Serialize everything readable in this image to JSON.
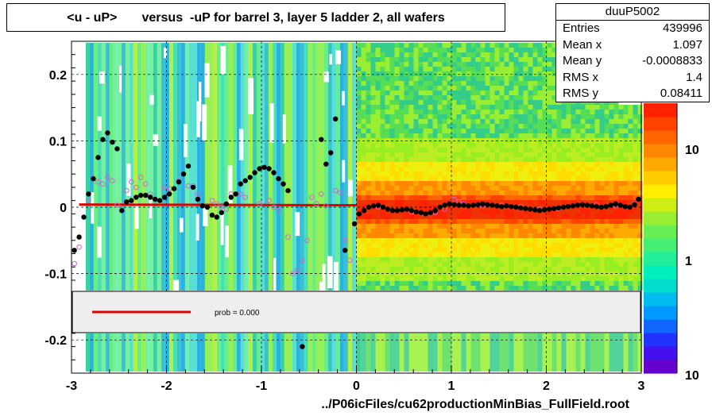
{
  "page": {
    "title": "<u - uP>       versus  -uP for barrel 3, layer 5 ladder 2, all wafers"
  },
  "stats": {
    "name": "duuP5002",
    "rows": [
      {
        "label": "Entries",
        "value": "439996"
      },
      {
        "label": "Mean x",
        "value": "1.097"
      },
      {
        "label": "Mean y",
        "value": "-0.0008833"
      },
      {
        "label": "RMS x",
        "value": "1.4"
      },
      {
        "label": "RMS y",
        "value": "0.08411"
      }
    ]
  },
  "legend": {
    "prob_text": "prob = 0.000"
  },
  "footer": {
    "x_title": "../P06icFiles/cu62productionMinBias_FullField.root"
  },
  "colors": {
    "fit_line": "#e00000",
    "profile_black": "#000000",
    "profile_open": "#cc66cc"
  },
  "chart_data": {
    "type": "scatter",
    "title": "<u - uP>       versus  -uP for barrel 3, layer 5 ladder 2, all wafers",
    "xlim": [
      -3,
      3
    ],
    "ylim": [
      -0.25,
      0.25
    ],
    "x_ticks": [
      "-3",
      "-2",
      "-1",
      "0",
      "1",
      "2",
      "3"
    ],
    "y_ticks": [
      "0.2",
      "0.1",
      "0",
      "-0.1",
      "-0.2"
    ],
    "z_ticks": [
      "10",
      "1",
      "10"
    ],
    "z_scale": "log",
    "grid": true,
    "heatmap_background": true,
    "series": [
      {
        "marker": "filled-circle",
        "x": [
          -2.97,
          -2.92,
          -2.87,
          -2.82,
          -2.77,
          -2.72,
          -2.67,
          -2.62,
          -2.57,
          -2.52,
          -2.47,
          -2.42,
          -2.37,
          -2.32,
          -2.27,
          -2.22,
          -2.17,
          -2.12,
          -2.07,
          -2.02,
          -1.97,
          -1.92,
          -1.87,
          -1.82,
          -1.77,
          -1.72,
          -1.67,
          -1.62,
          -1.57,
          -1.52,
          -1.47,
          -1.42,
          -1.37,
          -1.32,
          -1.27,
          -1.22,
          -1.17,
          -1.12,
          -1.07,
          -1.02,
          -0.97,
          -0.92,
          -0.87,
          -0.82,
          -0.77,
          -0.72,
          -0.57,
          -0.37,
          -0.32,
          -0.27,
          -0.22,
          -0.12,
          -0.02,
          0.03,
          0.08,
          0.13,
          0.18,
          0.23,
          0.28,
          0.33,
          0.38,
          0.43,
          0.48,
          0.53,
          0.58,
          0.63,
          0.68,
          0.73,
          0.78,
          0.83,
          0.88,
          0.93,
          0.98,
          1.03,
          1.08,
          1.13,
          1.18,
          1.23,
          1.28,
          1.33,
          1.38,
          1.43,
          1.48,
          1.53,
          1.58,
          1.63,
          1.68,
          1.73,
          1.78,
          1.83,
          1.88,
          1.93,
          1.98,
          2.03,
          2.08,
          2.13,
          2.18,
          2.23,
          2.28,
          2.33,
          2.38,
          2.43,
          2.48,
          2.53,
          2.58,
          2.63,
          2.68,
          2.73,
          2.78,
          2.83,
          2.88,
          2.93,
          2.97
        ],
        "y": [
          -0.065,
          -0.045,
          -0.015,
          0.02,
          0.043,
          0.075,
          0.102,
          0.112,
          0.098,
          0.088,
          -0.005,
          0.008,
          0.01,
          0.015,
          0.018,
          0.018,
          0.015,
          0.012,
          0.01,
          0.015,
          0.02,
          0.028,
          0.038,
          0.05,
          0.062,
          0.03,
          0.012,
          0.002,
          0.0,
          -0.012,
          -0.015,
          -0.008,
          0.005,
          0.015,
          0.02,
          0.035,
          0.04,
          0.045,
          0.052,
          0.058,
          0.06,
          0.058,
          0.052,
          0.043,
          0.035,
          0.025,
          -0.21,
          0.102,
          0.065,
          0.082,
          0.133,
          -0.065,
          -0.025,
          -0.01,
          -0.005,
          0.0,
          0.002,
          0.003,
          0.0,
          -0.003,
          -0.005,
          -0.005,
          -0.004,
          -0.003,
          -0.005,
          -0.007,
          -0.008,
          -0.01,
          -0.008,
          -0.005,
          0.0,
          0.003,
          0.005,
          0.004,
          0.003,
          0.003,
          0.002,
          0.003,
          0.004,
          0.005,
          0.004,
          0.003,
          0.002,
          0.001,
          0.002,
          0.001,
          0.0,
          -0.001,
          -0.002,
          -0.003,
          -0.004,
          -0.005,
          -0.004,
          -0.003,
          -0.002,
          -0.001,
          0.0,
          0.001,
          0.002,
          0.003,
          0.004,
          0.003,
          0.002,
          0.001,
          0.0,
          0.001,
          0.003,
          0.005,
          0.003,
          0.001,
          0.0,
          0.004,
          0.012
        ]
      },
      {
        "marker": "open-circle",
        "x": [
          -2.97,
          -2.92,
          -2.82,
          -2.72,
          -2.67,
          -2.62,
          -2.57,
          -2.52,
          -2.42,
          -2.37,
          -2.32,
          -2.27,
          -2.22,
          -2.17,
          -2.02,
          -1.97,
          -1.87,
          -1.77,
          -1.72,
          -1.67,
          -1.52,
          -1.47,
          -1.42,
          -1.37,
          -1.32,
          -1.22,
          -1.17,
          -1.02,
          -0.92,
          -0.87,
          -0.82,
          -0.72,
          -0.67,
          -0.62,
          -0.57,
          -0.52,
          -0.47,
          -0.42,
          -0.37,
          -0.32,
          -0.22,
          -0.17,
          -0.12,
          -0.07,
          -0.02,
          0.23,
          0.43,
          0.58,
          0.73,
          0.83,
          0.93,
          1.03,
          1.08,
          1.13,
          1.33,
          1.53,
          1.73,
          1.93,
          2.13,
          2.33,
          2.53,
          2.73,
          2.93
        ],
        "y": [
          -0.085,
          -0.06,
          0.01,
          0.038,
          0.035,
          0.045,
          0.04,
          0.003,
          0.025,
          0.038,
          0.03,
          0.045,
          0.035,
          0.02,
          0.03,
          0.028,
          0.04,
          0.032,
          0.032,
          0.02,
          0.01,
          0.005,
          0.0,
          -0.003,
          0.02,
          0.02,
          0.015,
          0.005,
          0.01,
          0.0,
          -0.005,
          -0.045,
          -0.1,
          -0.095,
          -0.08,
          -0.05,
          0.015,
          0.005,
          0.02,
          0.002,
          0.025,
          0.022,
          -0.05,
          -0.08,
          -0.025,
          0.0,
          -0.005,
          -0.007,
          -0.01,
          -0.008,
          -0.003,
          0.012,
          0.008,
          0.005,
          0.002,
          0.003,
          0.001,
          -0.003,
          -0.002,
          0.003,
          0.004,
          0.002,
          0.005
        ]
      }
    ],
    "fit_line": {
      "x": [
        -2.92,
        0.0
      ],
      "y": [
        0.004,
        0.003
      ]
    }
  }
}
